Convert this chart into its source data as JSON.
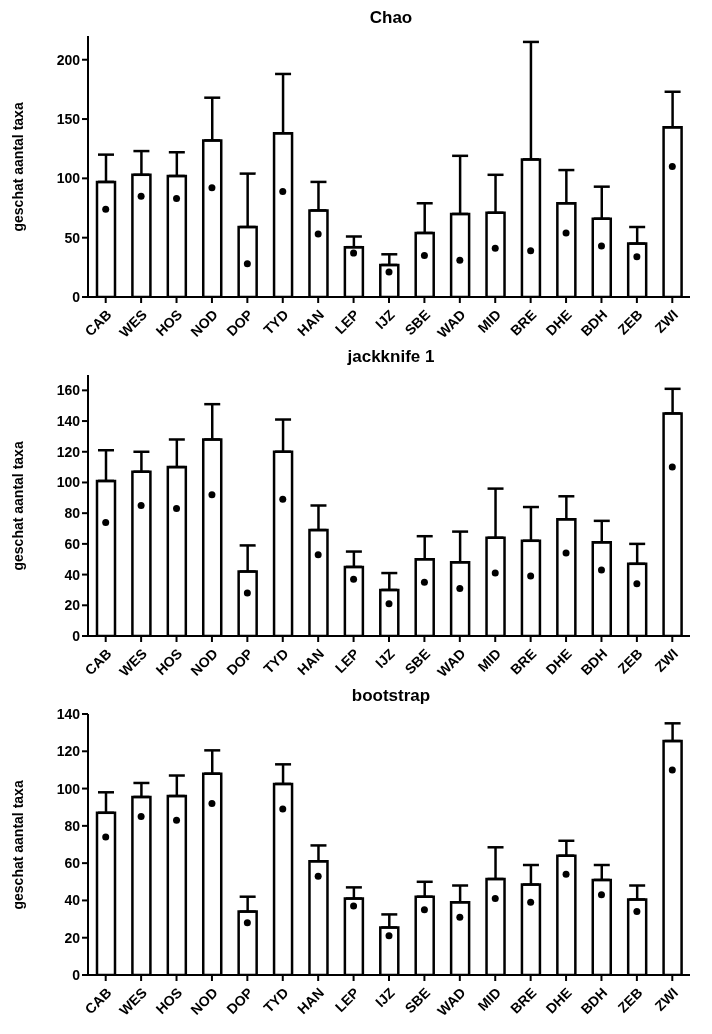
{
  "chart_data": [
    {
      "type": "bar",
      "title": "Chao",
      "ylabel": "geschat aantal taxa",
      "categories": [
        "CAB",
        "WES",
        "HOS",
        "NOD",
        "DOP",
        "TYD",
        "HAN",
        "LEP",
        "IJZ",
        "SBE",
        "WAD",
        "MID",
        "BRE",
        "DHE",
        "BDH",
        "ZEB",
        "ZWI"
      ],
      "ylim": [
        0,
        220
      ],
      "yticks": [
        0,
        50,
        100,
        150,
        200
      ],
      "grid": false,
      "legend": false,
      "series": [
        {
          "color": "#ffffff",
          "values": [
            97,
            103,
            102,
            132,
            59,
            138,
            73,
            42,
            27,
            54,
            70,
            71,
            116,
            79,
            66,
            45,
            143
          ],
          "errors": [
            [
              97,
              120
            ],
            [
              103,
              123
            ],
            [
              102,
              122
            ],
            [
              132,
              168
            ],
            [
              59,
              104
            ],
            [
              138,
              188
            ],
            [
              73,
              97
            ],
            [
              42,
              51
            ],
            [
              27,
              36
            ],
            [
              54,
              79
            ],
            [
              70,
              119
            ],
            [
              71,
              103
            ],
            [
              116,
              215
            ],
            [
              79,
              107
            ],
            [
              66,
              93
            ],
            [
              45,
              59
            ],
            [
              143,
              173
            ]
          ]
        },
        {
          "type": "scatter",
          "color": "#000000",
          "marker": "circle",
          "x": [
            "CAB",
            "WES",
            "HOS",
            "NOD",
            "DOP",
            "TYD",
            "HAN",
            "LEP",
            "IJZ",
            "SBE",
            "WAD",
            "MID",
            "BRE",
            "DHE",
            "BDH",
            "ZEB",
            "ZWI"
          ],
          "values": [
            74,
            85,
            83,
            92,
            28,
            89,
            53,
            37,
            21,
            35,
            31,
            41,
            39,
            54,
            43,
            34,
            110
          ]
        }
      ]
    },
    {
      "type": "bar",
      "title": "jackknife 1",
      "ylabel": "geschat aantal taxa",
      "categories": [
        "CAB",
        "WES",
        "HOS",
        "NOD",
        "DOP",
        "TYD",
        "HAN",
        "LEP",
        "IJZ",
        "SBE",
        "WAD",
        "MID",
        "BRE",
        "DHE",
        "BDH",
        "ZEB",
        "ZWI"
      ],
      "ylim": [
        0,
        170
      ],
      "yticks": [
        0,
        20,
        40,
        60,
        80,
        100,
        120,
        140,
        160
      ],
      "grid": false,
      "legend": false,
      "series": [
        {
          "color": "#ffffff",
          "values": [
            101,
            107,
            110,
            128,
            42,
            120,
            69,
            45,
            30,
            50,
            48,
            64,
            62,
            76,
            61,
            47,
            145
          ],
          "errors": [
            [
              101,
              121
            ],
            [
              107,
              120
            ],
            [
              110,
              128
            ],
            [
              128,
              151
            ],
            [
              42,
              59
            ],
            [
              120,
              141
            ],
            [
              69,
              85
            ],
            [
              45,
              55
            ],
            [
              30,
              41
            ],
            [
              50,
              65
            ],
            [
              48,
              68
            ],
            [
              64,
              96
            ],
            [
              62,
              84
            ],
            [
              76,
              91
            ],
            [
              61,
              75
            ],
            [
              47,
              60
            ],
            [
              145,
              161
            ]
          ]
        },
        {
          "type": "scatter",
          "color": "#000000",
          "marker": "circle",
          "x": [
            "CAB",
            "WES",
            "HOS",
            "NOD",
            "DOP",
            "TYD",
            "HAN",
            "LEP",
            "IJZ",
            "SBE",
            "WAD",
            "MID",
            "BRE",
            "DHE",
            "BDH",
            "ZEB",
            "ZWI"
          ],
          "values": [
            74,
            85,
            83,
            92,
            28,
            89,
            53,
            37,
            21,
            35,
            31,
            41,
            39,
            54,
            43,
            34,
            110
          ]
        }
      ]
    },
    {
      "type": "bar",
      "title": "bootstrap",
      "ylabel": "geschat aantal taxa",
      "categories": [
        "CAB",
        "WES",
        "HOS",
        "NOD",
        "DOP",
        "TYD",
        "HAN",
        "LEP",
        "IJZ",
        "SBE",
        "WAD",
        "MID",
        "BRE",
        "DHE",
        "BDH",
        "ZEB",
        "ZWI"
      ],
      "ylim": [
        0,
        140
      ],
      "yticks": [
        0,
        20,
        40,
        60,
        80,
        100,
        120,
        140
      ],
      "grid": false,
      "legend": false,
      "series": [
        {
          "color": "#ffffff",
          "values": [
            87,
            95.5,
            96,
            108,
            34,
            102.5,
            61,
            41,
            25.5,
            42,
            39,
            51.5,
            48.5,
            64,
            51,
            40.5,
            125.5
          ],
          "errors": [
            [
              87,
              98
            ],
            [
              95.5,
              103
            ],
            [
              96,
              107
            ],
            [
              108,
              120.5
            ],
            [
              34,
              42
            ],
            [
              102.5,
              113
            ],
            [
              61,
              69.5
            ],
            [
              41,
              47
            ],
            [
              25.5,
              32.5
            ],
            [
              42,
              50
            ],
            [
              39,
              48
            ],
            [
              51.5,
              68.5
            ],
            [
              48.5,
              59
            ],
            [
              64,
              72
            ],
            [
              51,
              59
            ],
            [
              40.5,
              48
            ],
            [
              125.5,
              135
            ]
          ]
        },
        {
          "type": "scatter",
          "color": "#000000",
          "marker": "circle",
          "x": [
            "CAB",
            "WES",
            "HOS",
            "NOD",
            "DOP",
            "TYD",
            "HAN",
            "LEP",
            "IJZ",
            "SBE",
            "WAD",
            "MID",
            "BRE",
            "DHE",
            "BDH",
            "ZEB",
            "ZWI"
          ],
          "values": [
            74,
            85,
            83,
            92,
            28,
            89,
            53,
            37,
            21,
            35,
            31,
            41,
            39,
            54,
            43,
            34,
            110
          ]
        }
      ]
    }
  ]
}
